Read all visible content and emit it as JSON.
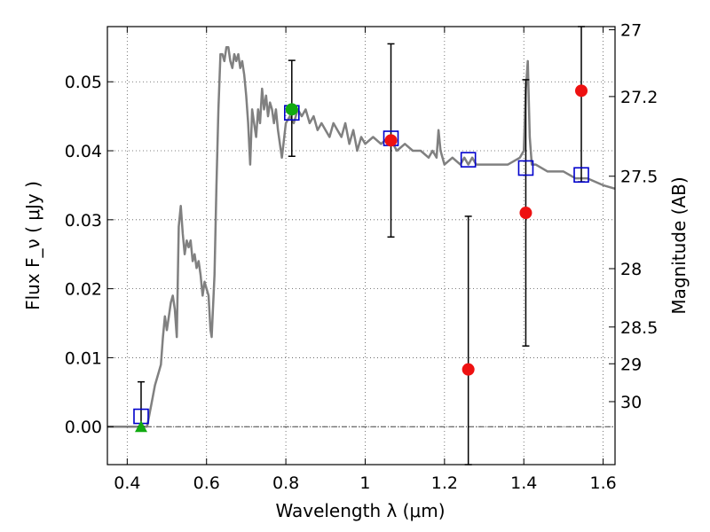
{
  "chart_data": {
    "type": "scatter",
    "xlabel": "Wavelength  λ (μm)",
    "ylabel": "Flux  F_ν  ( μJy )",
    "y2label": "Magnitude (AB)",
    "xlim": [
      0.35,
      1.63
    ],
    "ylim": [
      -0.0055,
      0.058
    ],
    "x_ticks": [
      0.4,
      0.6,
      0.8,
      1.0,
      1.2,
      1.4,
      1.6
    ],
    "x_tick_labels": [
      "0.4",
      "0.6",
      "0.8",
      "1",
      "1.2",
      "1.4",
      "1.6"
    ],
    "y_ticks": [
      0.0,
      0.01,
      0.02,
      0.03,
      0.04,
      0.05
    ],
    "y_tick_labels": [
      "0.00",
      "0.01",
      "0.02",
      "0.03",
      "0.04",
      "0.05"
    ],
    "y2_ticks": [
      {
        "flux": 0.05754,
        "label": "27"
      },
      {
        "flux": 0.04786,
        "label": "27.2"
      },
      {
        "flux": 0.03631,
        "label": "27.5"
      },
      {
        "flux": 0.02291,
        "label": "28"
      },
      {
        "flux": 0.01445,
        "label": "28.5"
      },
      {
        "flux": 0.00912,
        "label": "29"
      },
      {
        "flux": 0.00363,
        "label": "30"
      }
    ],
    "grid": true,
    "zero_line": true,
    "template_spectrum": {
      "color": "#808080",
      "x": [
        0.35,
        0.43,
        0.44,
        0.45,
        0.46,
        0.47,
        0.48,
        0.485,
        0.49,
        0.495,
        0.5,
        0.505,
        0.51,
        0.515,
        0.52,
        0.525,
        0.53,
        0.535,
        0.54,
        0.545,
        0.55,
        0.555,
        0.56,
        0.565,
        0.57,
        0.575,
        0.58,
        0.585,
        0.59,
        0.595,
        0.6,
        0.605,
        0.61,
        0.613,
        0.62,
        0.625,
        0.63,
        0.635,
        0.64,
        0.645,
        0.65,
        0.655,
        0.66,
        0.665,
        0.67,
        0.675,
        0.68,
        0.685,
        0.69,
        0.695,
        0.7,
        0.705,
        0.71,
        0.715,
        0.72,
        0.725,
        0.73,
        0.735,
        0.74,
        0.745,
        0.75,
        0.755,
        0.76,
        0.765,
        0.77,
        0.775,
        0.78,
        0.785,
        0.79,
        0.8,
        0.81,
        0.82,
        0.83,
        0.84,
        0.85,
        0.86,
        0.87,
        0.88,
        0.89,
        0.9,
        0.91,
        0.92,
        0.93,
        0.94,
        0.95,
        0.96,
        0.97,
        0.98,
        0.99,
        1.0,
        1.02,
        1.04,
        1.06,
        1.08,
        1.1,
        1.12,
        1.14,
        1.16,
        1.17,
        1.18,
        1.185,
        1.19,
        1.2,
        1.22,
        1.24,
        1.25,
        1.26,
        1.27,
        1.28,
        1.3,
        1.33,
        1.36,
        1.39,
        1.4,
        1.405,
        1.41,
        1.415,
        1.42,
        1.43,
        1.46,
        1.5,
        1.53,
        1.56,
        1.6,
        1.63
      ],
      "y": [
        0.0,
        0.0,
        0.0,
        0.0,
        0.003,
        0.006,
        0.008,
        0.009,
        0.013,
        0.016,
        0.014,
        0.016,
        0.018,
        0.019,
        0.017,
        0.013,
        0.029,
        0.032,
        0.028,
        0.025,
        0.027,
        0.026,
        0.027,
        0.024,
        0.025,
        0.023,
        0.024,
        0.022,
        0.019,
        0.021,
        0.02,
        0.019,
        0.014,
        0.013,
        0.022,
        0.035,
        0.046,
        0.054,
        0.054,
        0.053,
        0.055,
        0.055,
        0.053,
        0.052,
        0.054,
        0.053,
        0.054,
        0.052,
        0.053,
        0.051,
        0.048,
        0.044,
        0.038,
        0.046,
        0.044,
        0.042,
        0.046,
        0.044,
        0.049,
        0.046,
        0.048,
        0.045,
        0.047,
        0.046,
        0.044,
        0.046,
        0.043,
        0.041,
        0.039,
        0.044,
        0.045,
        0.044,
        0.046,
        0.045,
        0.046,
        0.044,
        0.045,
        0.043,
        0.044,
        0.043,
        0.042,
        0.044,
        0.043,
        0.042,
        0.044,
        0.041,
        0.043,
        0.04,
        0.042,
        0.041,
        0.042,
        0.041,
        0.042,
        0.04,
        0.041,
        0.04,
        0.04,
        0.039,
        0.04,
        0.039,
        0.043,
        0.04,
        0.038,
        0.039,
        0.038,
        0.039,
        0.038,
        0.039,
        0.038,
        0.038,
        0.038,
        0.038,
        0.039,
        0.04,
        0.049,
        0.053,
        0.042,
        0.038,
        0.038,
        0.037,
        0.037,
        0.036,
        0.036,
        0.035,
        0.0345
      ]
    },
    "series": [
      {
        "name": "",
        "marker": "open-square",
        "color": "#0000cc",
        "points": [
          {
            "x": 0.435,
            "y": 0.0015
          },
          {
            "x": 0.815,
            "y": 0.0455
          },
          {
            "x": 1.065,
            "y": 0.0418
          },
          {
            "x": 1.26,
            "y": 0.0387
          },
          {
            "x": 1.405,
            "y": 0.0375
          },
          {
            "x": 1.545,
            "y": 0.0365
          }
        ]
      },
      {
        "name": "",
        "marker": "filled-circle",
        "color": "#ee1111",
        "points": [
          {
            "x": 1.065,
            "y": 0.0415,
            "err_low": 0.0275,
            "err_high": 0.0555
          },
          {
            "x": 1.26,
            "y": 0.0083,
            "err_low": -0.0055,
            "err_high": 0.0305
          },
          {
            "x": 1.405,
            "y": 0.031,
            "err_low": 0.0117,
            "err_high": 0.0503
          },
          {
            "x": 1.545,
            "y": 0.0487,
            "err_low": 0.0355,
            "err_high": 0.058
          }
        ]
      },
      {
        "name": "",
        "marker": "filled-circle",
        "color": "#11aa11",
        "points": [
          {
            "x": 0.815,
            "y": 0.046,
            "err_low": 0.0392,
            "err_high": 0.0531
          }
        ]
      },
      {
        "name": "",
        "marker": "filled-triangle",
        "color": "#11aa11",
        "points": [
          {
            "x": 0.435,
            "y": 0.0,
            "err_low": 0.0,
            "err_high": 0.0065
          }
        ]
      }
    ]
  }
}
